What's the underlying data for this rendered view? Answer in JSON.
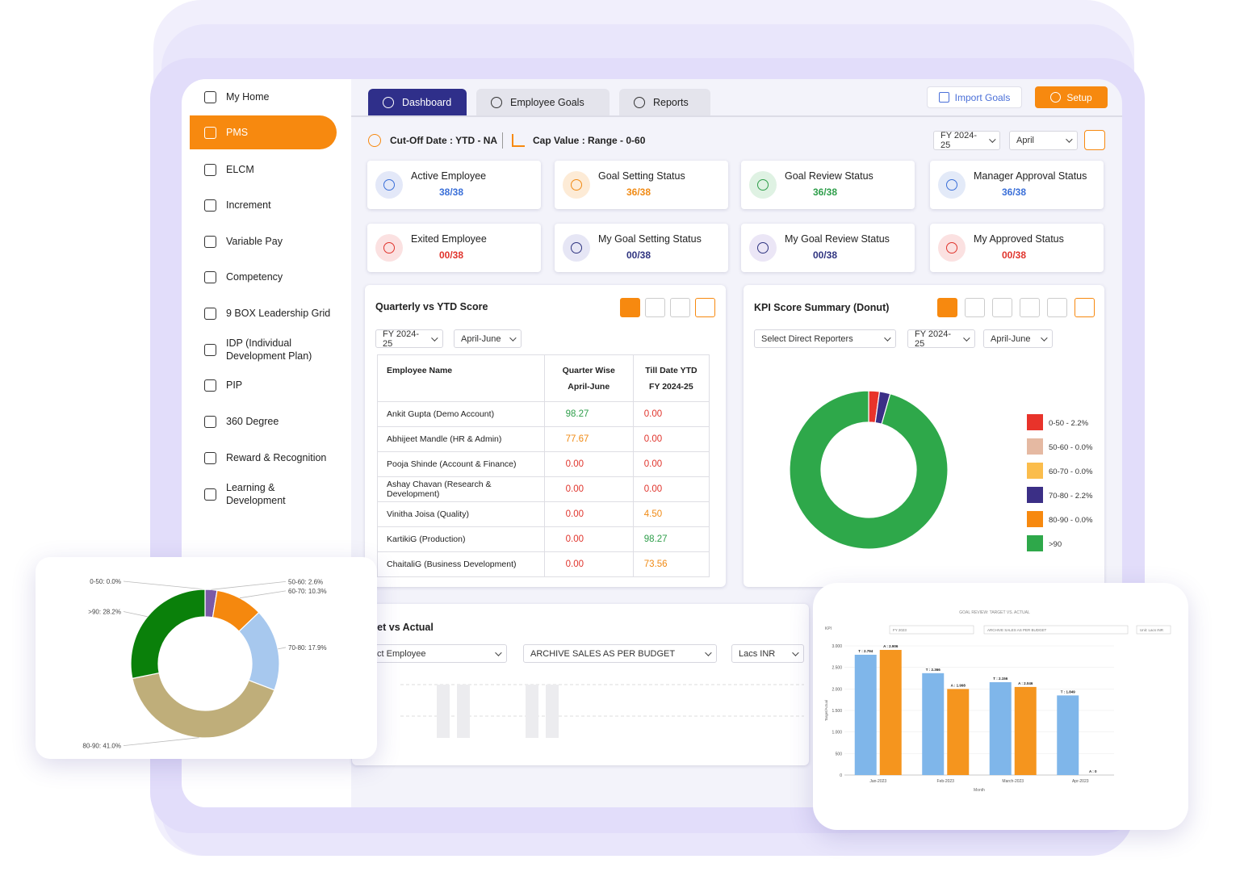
{
  "sidebar": {
    "items": [
      "My Home",
      "PMS",
      "ELCM",
      "Increment",
      "Variable Pay",
      "Competency",
      "9 BOX Leadership Grid",
      "IDP (Individual Development Plan)",
      "PIP",
      "360 Degree",
      "Reward & Recognition",
      "Learning & Development"
    ],
    "active": "PMS"
  },
  "tabs": [
    "Dashboard",
    "Employee Goals",
    "Reports"
  ],
  "active_tab": "Dashboard",
  "actions": [
    "Import Goals",
    "Setup"
  ],
  "filters": {
    "cutoff": "Cut-Off Date : YTD - NA",
    "cap": "Cap Value : Range - 0-60",
    "year": "FY 2024-25",
    "month": "April"
  },
  "cards": [
    {
      "title": "Active Employee",
      "value": "38/38",
      "color": "#3a6fd8",
      "icon_color": "#e3e8f8"
    },
    {
      "title": "Goal Setting Status",
      "value": "36/38",
      "color": "#f08a14",
      "icon_color": "#fdebd6"
    },
    {
      "title": "Goal Review Status",
      "value": "36/38",
      "color": "#2e9e4a",
      "icon_color": "#dff2e3"
    },
    {
      "title": "Manager Approval Status",
      "value": "36/38",
      "color": "#3a6fd8",
      "icon_color": "#e3eaf8"
    },
    {
      "title": "Exited Employee",
      "value": "00/38",
      "color": "#e0342c",
      "icon_color": "#fbe1e1"
    },
    {
      "title": "My Goal Setting Status",
      "value": "00/38",
      "color": "#2f3480",
      "icon_color": "#e6e6f5"
    },
    {
      "title": "My Goal Review Status",
      "value": "00/38",
      "color": "#2f3480",
      "icon_color": "#ebe6f6"
    },
    {
      "title": "My Approved Status",
      "value": "00/38",
      "color": "#e0342c",
      "icon_color": "#fbe1e1"
    }
  ],
  "score_table": {
    "title": "Quarterly vs YTD Score",
    "filters": [
      "FY 2024-25",
      "April-June"
    ],
    "headers": [
      [
        "Employee Name"
      ],
      [
        "Quarter Wise",
        "April-June"
      ],
      [
        "Till Date YTD",
        "FY 2024-25"
      ]
    ],
    "rows": [
      [
        "Ankit Gupta (Demo Account)",
        "98.27",
        "0.00"
      ],
      [
        "Abhijeet Mandle (HR & Admin)",
        "77.67",
        "0.00"
      ],
      [
        "Pooja Shinde (Account & Finance)",
        "0.00",
        "0.00"
      ],
      [
        "Ashay Chavan (Research & Development)",
        "0.00",
        "0.00"
      ],
      [
        "Vinitha Joisa (Quality)",
        "0.00",
        "4.50"
      ],
      [
        "KartikiG (Production)",
        "0.00",
        "98.27"
      ],
      [
        "ChaitaliG (Business Development)",
        "0.00",
        "73.56"
      ]
    ],
    "cell_colors": [
      [
        "#2e9e4a",
        "#e0342c"
      ],
      [
        "#f08a14",
        "#e0342c"
      ],
      [
        "#e0342c",
        "#e0342c"
      ],
      [
        "#e0342c",
        "#e0342c"
      ],
      [
        "#e0342c",
        "#f08a14"
      ],
      [
        "#e0342c",
        "#2e9e4a"
      ],
      [
        "#e0342c",
        "#f08a14"
      ]
    ]
  },
  "kpi_donut": {
    "type": "donut",
    "title": "KPI Score Summary (Donut)",
    "filters": [
      "Select Direct Reporters",
      "FY 2024-25",
      "April-June"
    ],
    "labels": [
      "0-50 - 2.2%",
      "50-60 - 0.0%",
      "60-70 - 0.0%",
      "70-80 - 2.2%",
      "80-90 - 0.0%",
      ">90"
    ],
    "values": [
      2.2,
      0,
      0,
      2.2,
      0,
      95.6
    ],
    "colors": [
      "#e8332a",
      "#e5b9a2",
      "#fbbd4c",
      "#3b2f86",
      "#f7890f",
      "#2ea84a"
    ]
  },
  "target_panel": {
    "title": "Target vs Actual",
    "filters": [
      "Select Employee",
      "ARCHIVE SALES AS PER BUDGET",
      "Lacs INR"
    ]
  },
  "score_donut": {
    "type": "donut",
    "labels": [
      "0-50: 0.0%",
      "50-60: 2.6%",
      "60-70: 10.3%",
      "70-80: 17.9%",
      "80-90: 41.0%",
      ">90: 28.2%"
    ],
    "values": [
      0,
      2.6,
      10.3,
      17.9,
      41.0,
      28.2
    ],
    "colors": [
      "#5a5ab0",
      "#7b5aa6",
      "#f5880e",
      "#a7c8ee",
      "#bfae7a",
      "#0a800a"
    ]
  },
  "goal_chart": {
    "type": "bar",
    "title": "GOAL REVIEW: TARGET VS. ACTUAL",
    "kpi_label": "KPI",
    "filters": [
      "FY 2023",
      "ARCHIVE SALES AS PER BUDGET",
      "Unit: Lacs INR"
    ],
    "xlabel": "Month",
    "ylabel": "Target/Actual",
    "categories": [
      "Jan-2023",
      "Feb-2023",
      "March-2023",
      "Apr-2023"
    ],
    "series": [
      {
        "color": "#7fb6ea",
        "values": [
          2794,
          2366,
          2156,
          1849
        ],
        "value_labels": [
          "T : 2.794",
          "T : 2.366",
          "T : 2.156",
          "T : 1.849"
        ]
      },
      {
        "color": "#f5951e",
        "values": [
          2906,
          1998,
          2046,
          0
        ],
        "value_labels": [
          "A : 2.906",
          "A : 1.998",
          "A : 2.046",
          "A : 0"
        ]
      }
    ],
    "ylim": [
      0,
      3000
    ],
    "yticks": [
      0,
      500,
      {
        "value": 1000,
        "label": "1.000"
      },
      {
        "value": 1500,
        "label": "1.500"
      },
      {
        "value": 2000,
        "label": "2.000"
      },
      {
        "value": 2500,
        "label": "2.500"
      },
      {
        "value": 3000,
        "label": "3.000"
      }
    ]
  }
}
